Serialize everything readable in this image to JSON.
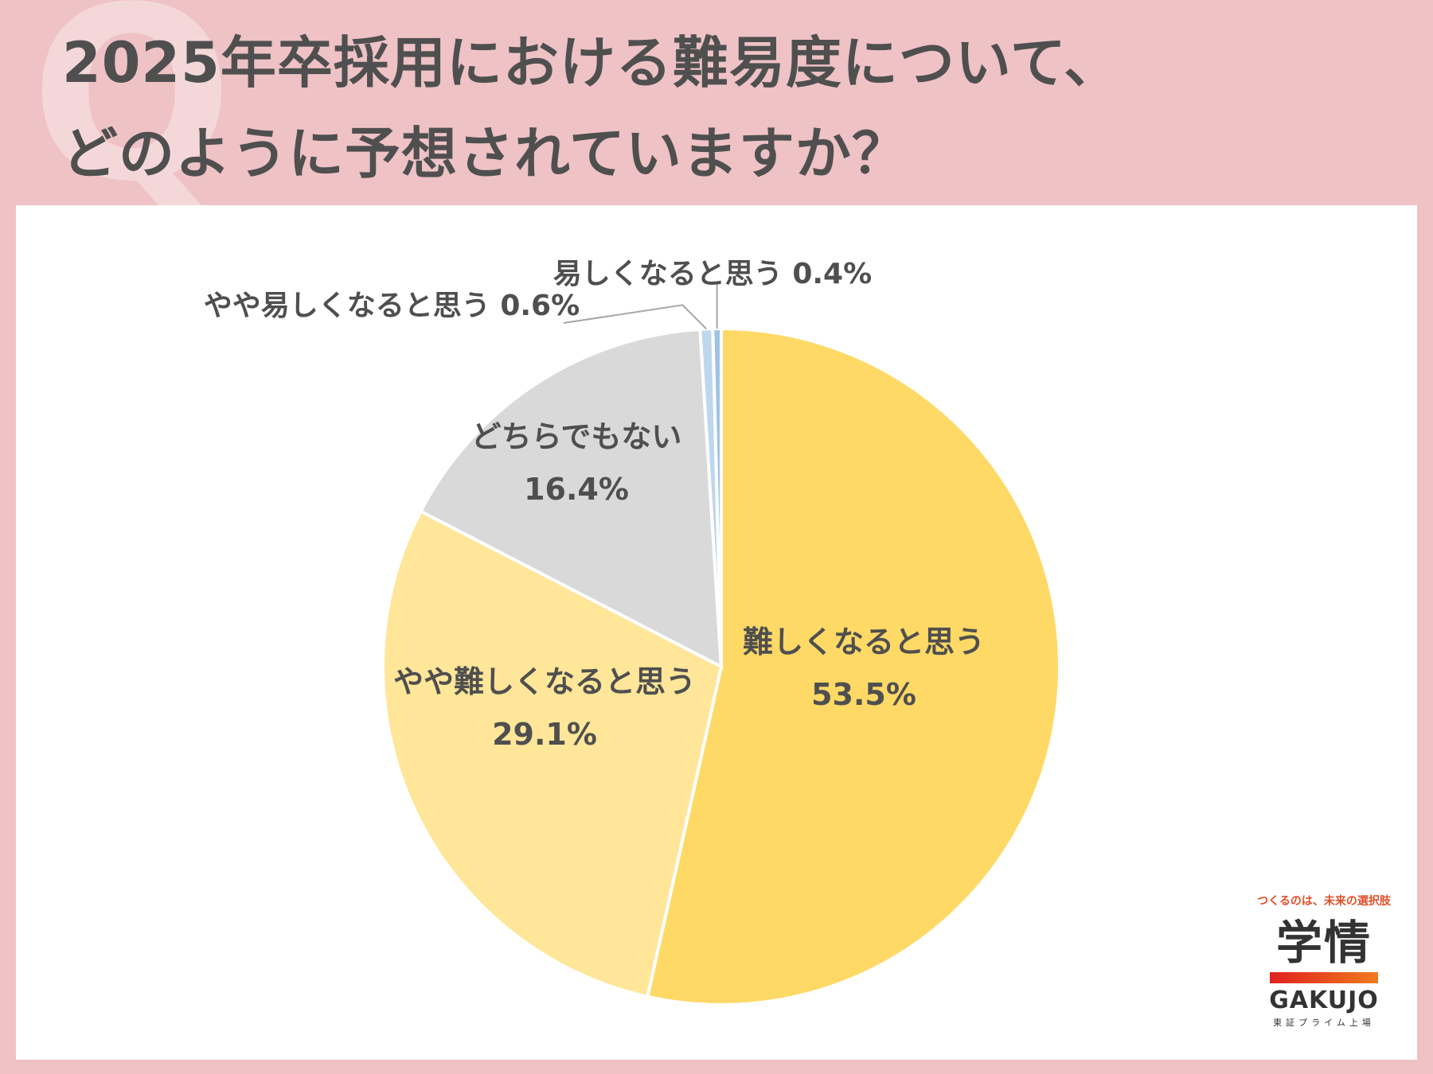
{
  "header": {
    "title_line1": "2025年卒採用における難易度について、",
    "title_line2": "どのように予想されていますか？"
  },
  "chart_data": {
    "type": "pie",
    "title": "",
    "slices": [
      {
        "label": "難しくなると思う",
        "value": 53.5,
        "display": "53.5%",
        "color": "#ffd966"
      },
      {
        "label": "やや難しくなると思う",
        "value": 29.1,
        "display": "29.1%",
        "color": "#ffe699"
      },
      {
        "label": "どちらでもない",
        "value": 16.4,
        "display": "16.4%",
        "color": "#d9d9d9"
      },
      {
        "label": "やや易しくなると思う",
        "value": 0.6,
        "display": "0.6%",
        "color": "#bdd7ee"
      },
      {
        "label": "易しくなると思う",
        "value": 0.4,
        "display": "0.4%",
        "color": "#9dc3e6"
      }
    ]
  },
  "logo": {
    "tagline": "つくるのは、未来の選択肢",
    "name_ja": "学情",
    "name_en": "GAKUJO",
    "subtitle": "東証プライム上場"
  }
}
